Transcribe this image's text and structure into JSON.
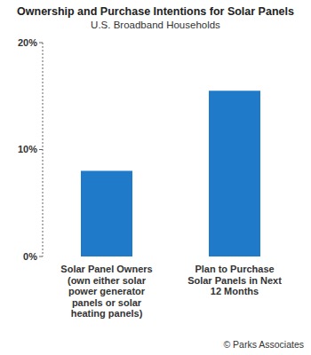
{
  "chart_data": {
    "type": "bar",
    "title": "Ownership and Purchase Intentions for Solar Panels",
    "subtitle": "U.S. Broadband Households",
    "categories": [
      "Solar Panel Owners (own either solar power generator panels or solar heating panels)",
      "Plan to Purchase Solar Panels in Next 12 Months"
    ],
    "values": [
      8,
      15.5
    ],
    "color": "#1f7bc9",
    "ylim": [
      0,
      20
    ],
    "yticks": [
      {
        "value": 0,
        "label": "0%"
      },
      {
        "value": 10,
        "label": "10%"
      },
      {
        "value": 20,
        "label": "20%"
      }
    ],
    "grid": false,
    "annotations": [
      "© Parks Associates"
    ]
  }
}
